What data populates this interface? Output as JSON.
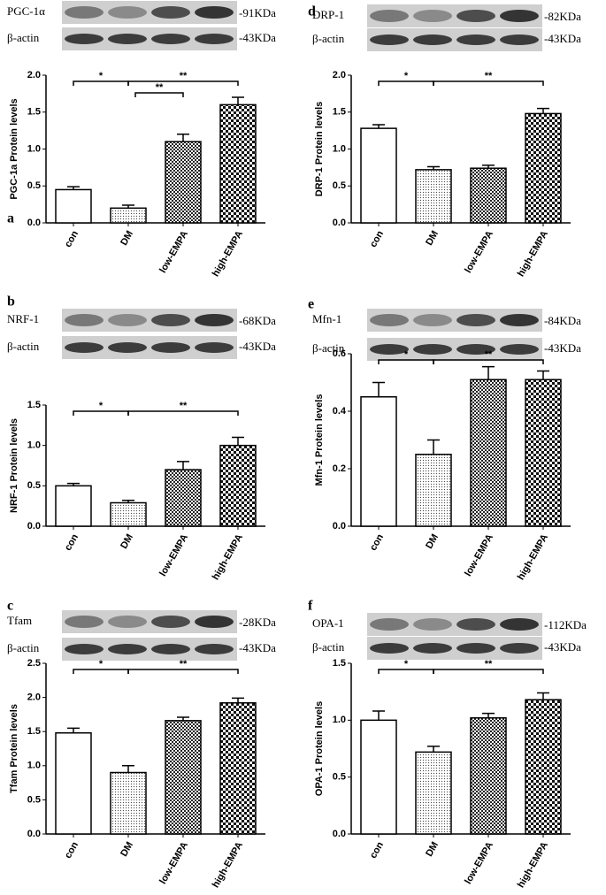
{
  "chart_data": [
    {
      "type": "bar",
      "panel": "a",
      "title": "PGC-1α",
      "loading_label": "β-actin",
      "target_kda": "-91KDa",
      "control_kda": "-43KDa",
      "ylabel": "PGC-1a Protein levels",
      "categories": [
        "con",
        "DM",
        "low-EMPA",
        "high-EMPA"
      ],
      "values": [
        0.45,
        0.2,
        1.1,
        1.6
      ],
      "errors": [
        0.04,
        0.04,
        0.1,
        0.1
      ],
      "ylim": [
        0,
        2
      ],
      "yticks": [
        {
          "value": 0,
          "label": "0.0"
        },
        {
          "value": 0.5,
          "label": "0.5"
        },
        {
          "value": 1,
          "label": "1.0"
        },
        {
          "value": 1.5,
          "label": "1.5"
        },
        {
          "value": 2,
          "label": "2.0"
        }
      ],
      "annotations": [
        {
          "text": "*",
          "between": [
            "con",
            "DM"
          ]
        },
        {
          "text": "**",
          "between": [
            "DM",
            "high-EMPA"
          ]
        },
        {
          "text": "**",
          "between": [
            "DM",
            "low-EMPA"
          ]
        }
      ]
    },
    {
      "type": "bar",
      "panel": "b",
      "title": "NRF-1",
      "loading_label": "β-actin",
      "target_kda": "-68KDa",
      "control_kda": "-43KDa",
      "ylabel": "NRF-1 Protein levels",
      "categories": [
        "con",
        "DM",
        "low-EMPA",
        "high-EMPA"
      ],
      "values": [
        0.5,
        0.29,
        0.7,
        1.0
      ],
      "errors": [
        0.03,
        0.03,
        0.1,
        0.1
      ],
      "ylim": [
        0,
        1.5
      ],
      "yticks": [
        {
          "value": 0,
          "label": "0.0"
        },
        {
          "value": 0.5,
          "label": "0.5"
        },
        {
          "value": 1,
          "label": "1.0"
        },
        {
          "value": 1.5,
          "label": "1.5"
        }
      ],
      "annotations": [
        {
          "text": "*",
          "between": [
            "con",
            "DM"
          ]
        },
        {
          "text": "**",
          "between": [
            "DM",
            "high-EMPA"
          ]
        }
      ]
    },
    {
      "type": "bar",
      "panel": "c",
      "title": "Tfam",
      "loading_label": "β-actin",
      "target_kda": "-28KDa",
      "control_kda": "-43KDa",
      "ylabel": "Tfam Protein levels",
      "categories": [
        "con",
        "DM",
        "low-EMPA",
        "high-EMPA"
      ],
      "values": [
        1.48,
        0.9,
        1.66,
        1.92
      ],
      "errors": [
        0.07,
        0.1,
        0.05,
        0.07
      ],
      "ylim": [
        0,
        2.5
      ],
      "yticks": [
        {
          "value": 0,
          "label": "0.0"
        },
        {
          "value": 0.5,
          "label": "0.5"
        },
        {
          "value": 1,
          "label": "1.0"
        },
        {
          "value": 1.5,
          "label": "1.5"
        },
        {
          "value": 2,
          "label": "2.0"
        },
        {
          "value": 2.5,
          "label": "2.5"
        }
      ],
      "annotations": [
        {
          "text": "*",
          "between": [
            "con",
            "DM"
          ]
        },
        {
          "text": "**",
          "between": [
            "DM",
            "high-EMPA"
          ]
        }
      ]
    },
    {
      "type": "bar",
      "panel": "d",
      "title": "DRP-1",
      "loading_label": "β-actin",
      "target_kda": "-82KDa",
      "control_kda": "-43KDa",
      "ylabel": "DRP-1 Protein levels",
      "categories": [
        "con",
        "DM",
        "low-EMPA",
        "high-EMPA"
      ],
      "values": [
        1.28,
        0.72,
        0.74,
        1.48
      ],
      "errors": [
        0.05,
        0.04,
        0.04,
        0.07
      ],
      "ylim": [
        0,
        2
      ],
      "yticks": [
        {
          "value": 0,
          "label": "0.0"
        },
        {
          "value": 0.5,
          "label": "0.5"
        },
        {
          "value": 1,
          "label": "1.0"
        },
        {
          "value": 1.5,
          "label": "1.5"
        },
        {
          "value": 2,
          "label": "2.0"
        }
      ],
      "annotations": [
        {
          "text": "*",
          "between": [
            "con",
            "DM"
          ]
        },
        {
          "text": "**",
          "between": [
            "DM",
            "high-EMPA"
          ]
        }
      ]
    },
    {
      "type": "bar",
      "panel": "e",
      "title": "Mfn-1",
      "loading_label": "β-actin",
      "target_kda": "-84KDa",
      "control_kda": "-43KDa",
      "ylabel": "Mfn-1 Protein levels",
      "categories": [
        "con",
        "DM",
        "low-EMPA",
        "high-EMPA"
      ],
      "values": [
        0.45,
        0.25,
        0.51,
        0.51
      ],
      "errors": [
        0.05,
        0.05,
        0.045,
        0.03
      ],
      "ylim": [
        0,
        0.6
      ],
      "yticks": [
        {
          "value": 0,
          "label": "0.0"
        },
        {
          "value": 0.2,
          "label": "0.2"
        },
        {
          "value": 0.4,
          "label": "0.4"
        },
        {
          "value": 0.6,
          "label": "0.6"
        }
      ],
      "annotations": [
        {
          "text": "*",
          "between": [
            "con",
            "DM"
          ]
        },
        {
          "text": "**",
          "between": [
            "DM",
            "high-EMPA"
          ]
        }
      ]
    },
    {
      "type": "bar",
      "panel": "f",
      "title": "OPA-1",
      "loading_label": "β-actin",
      "target_kda": "-112KDa",
      "control_kda": "-43KDa",
      "ylabel": "OPA-1 Protein levels",
      "categories": [
        "con",
        "DM",
        "low-EMPA",
        "high-EMPA"
      ],
      "values": [
        1.0,
        0.72,
        1.02,
        1.18
      ],
      "errors": [
        0.08,
        0.05,
        0.04,
        0.06
      ],
      "ylim": [
        0,
        1.5
      ],
      "yticks": [
        {
          "value": 0,
          "label": "0.0"
        },
        {
          "value": 0.5,
          "label": "0.5"
        },
        {
          "value": 1,
          "label": "1.0"
        },
        {
          "value": 1.5,
          "label": "1.5"
        }
      ],
      "annotations": [
        {
          "text": "*",
          "between": [
            "con",
            "DM"
          ]
        },
        {
          "text": "**",
          "between": [
            "DM",
            "high-EMPA"
          ]
        }
      ]
    }
  ]
}
